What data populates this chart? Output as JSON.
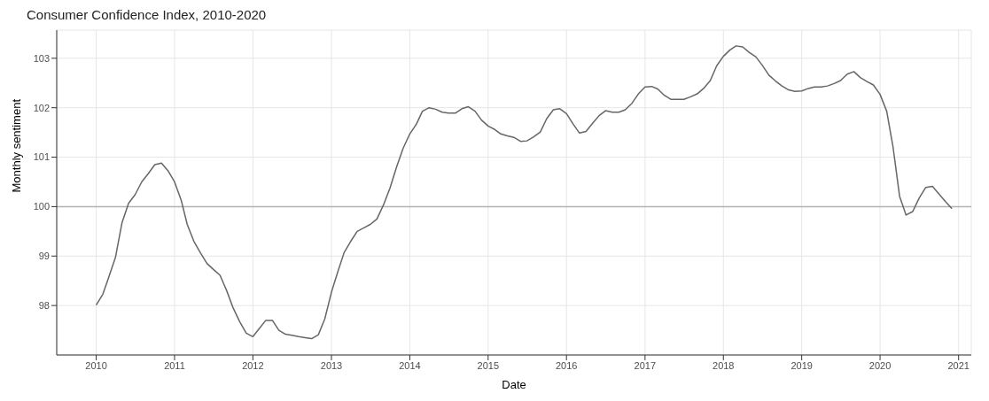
{
  "chart_data": {
    "type": "line",
    "title": "Consumer Confidence Index, 2010-2020",
    "xlabel": "Date",
    "ylabel": "Monthly sentiment",
    "x": [
      "2010-01",
      "2010-02",
      "2010-03",
      "2010-04",
      "2010-05",
      "2010-06",
      "2010-07",
      "2010-08",
      "2010-09",
      "2010-10",
      "2010-11",
      "2010-12",
      "2011-01",
      "2011-02",
      "2011-03",
      "2011-04",
      "2011-05",
      "2011-06",
      "2011-07",
      "2011-08",
      "2011-09",
      "2011-10",
      "2011-11",
      "2011-12",
      "2012-01",
      "2012-02",
      "2012-03",
      "2012-04",
      "2012-05",
      "2012-06",
      "2012-07",
      "2012-08",
      "2012-09",
      "2012-10",
      "2012-11",
      "2012-12",
      "2013-01",
      "2013-02",
      "2013-03",
      "2013-04",
      "2013-05",
      "2013-06",
      "2013-07",
      "2013-08",
      "2013-09",
      "2013-10",
      "2013-11",
      "2013-12",
      "2014-01",
      "2014-02",
      "2014-03",
      "2014-04",
      "2014-05",
      "2014-06",
      "2014-07",
      "2014-08",
      "2014-09",
      "2014-10",
      "2014-11",
      "2014-12",
      "2015-01",
      "2015-02",
      "2015-03",
      "2015-04",
      "2015-05",
      "2015-06",
      "2015-07",
      "2015-08",
      "2015-09",
      "2015-10",
      "2015-11",
      "2015-12",
      "2016-01",
      "2016-02",
      "2016-03",
      "2016-04",
      "2016-05",
      "2016-06",
      "2016-07",
      "2016-08",
      "2016-09",
      "2016-10",
      "2016-11",
      "2016-12",
      "2017-01",
      "2017-02",
      "2017-03",
      "2017-04",
      "2017-05",
      "2017-06",
      "2017-07",
      "2017-08",
      "2017-09",
      "2017-10",
      "2017-11",
      "2017-12",
      "2018-01",
      "2018-02",
      "2018-03",
      "2018-04",
      "2018-05",
      "2018-06",
      "2018-07",
      "2018-08",
      "2018-09",
      "2018-10",
      "2018-11",
      "2018-12",
      "2019-01",
      "2019-02",
      "2019-03",
      "2019-04",
      "2019-05",
      "2019-06",
      "2019-07",
      "2019-08",
      "2019-09",
      "2019-10",
      "2019-11",
      "2019-12",
      "2020-01",
      "2020-02",
      "2020-03",
      "2020-04",
      "2020-05",
      "2020-06",
      "2020-07",
      "2020-08",
      "2020-09",
      "2020-10",
      "2020-11",
      "2020-12"
    ],
    "series": [
      {
        "color": "#666666",
        "values": [
          98.01,
          98.23,
          98.58,
          98.98,
          99.67,
          100.07,
          100.24,
          100.5,
          100.67,
          100.85,
          100.88,
          100.73,
          100.5,
          100.13,
          99.64,
          99.3,
          99.07,
          98.85,
          98.73,
          98.61,
          98.3,
          97.95,
          97.67,
          97.44,
          97.37,
          97.54,
          97.7,
          97.7,
          97.5,
          97.42,
          97.4,
          97.37,
          97.35,
          97.33,
          97.41,
          97.73,
          98.27,
          98.7,
          99.07,
          99.3,
          99.5,
          99.57,
          99.64,
          99.75,
          100.04,
          100.38,
          100.81,
          101.18,
          101.47,
          101.67,
          101.93,
          102.0,
          101.97,
          101.91,
          101.89,
          101.89,
          101.98,
          102.02,
          101.93,
          101.75,
          101.63,
          101.56,
          101.47,
          101.43,
          101.4,
          101.32,
          101.33,
          101.41,
          101.51,
          101.78,
          101.96,
          101.98,
          101.88,
          101.67,
          101.49,
          101.52,
          101.68,
          101.84,
          101.94,
          101.91,
          101.91,
          101.96,
          102.09,
          102.28,
          102.42,
          102.43,
          102.38,
          102.25,
          102.17,
          102.17,
          102.17,
          102.22,
          102.28,
          102.39,
          102.55,
          102.85,
          103.04,
          103.17,
          103.25,
          103.23,
          103.12,
          103.03,
          102.86,
          102.66,
          102.54,
          102.44,
          102.36,
          102.33,
          102.34,
          102.39,
          102.42,
          102.42,
          102.44,
          102.49,
          102.55,
          102.68,
          102.73,
          102.61,
          102.53,
          102.46,
          102.27,
          101.93,
          101.22,
          100.21,
          99.83,
          99.9,
          100.17,
          100.39,
          100.41,
          100.26,
          100.1,
          99.96
        ]
      }
    ],
    "xlim": [
      "2009-07",
      "2021-03"
    ],
    "xticks": [
      "2010",
      "2011",
      "2012",
      "2013",
      "2014",
      "2015",
      "2016",
      "2017",
      "2018",
      "2019",
      "2020",
      "2021"
    ],
    "ylim": [
      97.0,
      103.57
    ],
    "yticks": [
      98,
      99,
      100,
      101,
      102,
      103
    ],
    "ref_lines": [
      {
        "axis": "y",
        "value": 100,
        "color": "#b3b3b3"
      }
    ],
    "grid": true,
    "marker": "none",
    "line_style": "solid"
  }
}
